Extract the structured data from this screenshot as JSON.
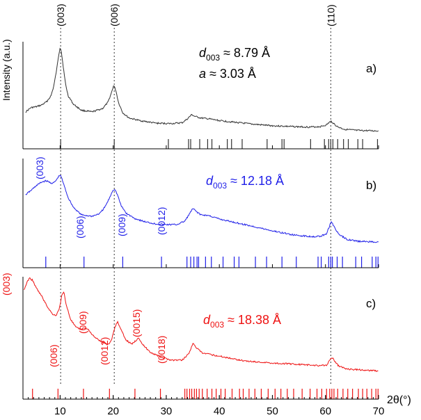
{
  "chart_data": {
    "type": "line",
    "title": "",
    "xlabel": "2θ(°)",
    "ylabel": "Intensity (a.u.)",
    "xlim": [
      3,
      70
    ],
    "x_ticks": [
      10,
      20,
      30,
      40,
      50,
      60,
      70
    ],
    "x_tick_labels": [
      "10",
      "20",
      "30",
      "40",
      "50",
      "60",
      "70"
    ],
    "grid": false,
    "legend": "none",
    "reference_lines": [
      {
        "label": "(003)",
        "x": 10.1
      },
      {
        "label": "(006)",
        "x": 20.2
      },
      {
        "label": "(110)",
        "x": 61.0
      }
    ],
    "panels": [
      {
        "id": "a",
        "panel_label": "a)",
        "color": "#303030",
        "annotation": [
          {
            "symbol": "d",
            "sub": "003",
            "rest": " ≈ 8.79 Å"
          },
          {
            "symbol": "a",
            "sub": "",
            "rest": " ≈ 3.03 Å"
          }
        ],
        "curve": {
          "x": [
            3.5,
            4.5,
            5.5,
            6.5,
            7.5,
            8.3,
            8.8,
            9.3,
            9.7,
            10.0,
            10.2,
            10.5,
            11.0,
            11.5,
            12.5,
            14.0,
            16.0,
            18.0,
            19.0,
            19.6,
            20.1,
            20.5,
            21.0,
            21.8,
            23.0,
            25.0,
            28.0,
            31.0,
            33.0,
            34.0,
            34.8,
            35.3,
            36.5,
            38.0,
            40.0,
            43.0,
            46.0,
            50.0,
            54.0,
            57.0,
            59.0,
            60.2,
            60.8,
            61.1,
            61.5,
            62.2,
            63.5,
            66.0,
            70.0
          ],
          "y": [
            0.25,
            0.3,
            0.31,
            0.33,
            0.37,
            0.44,
            0.55,
            0.72,
            0.9,
            1.0,
            0.96,
            0.82,
            0.58,
            0.44,
            0.34,
            0.27,
            0.25,
            0.29,
            0.36,
            0.46,
            0.56,
            0.5,
            0.36,
            0.24,
            0.18,
            0.15,
            0.12,
            0.115,
            0.125,
            0.17,
            0.22,
            0.2,
            0.18,
            0.17,
            0.15,
            0.13,
            0.11,
            0.09,
            0.08,
            0.075,
            0.08,
            0.1,
            0.135,
            0.14,
            0.12,
            0.08,
            0.05,
            0.035,
            0.03
          ]
        },
        "reflection_positions": [
          10.1,
          20.2,
          30.4,
          34.2,
          34.6,
          36.3,
          37.8,
          38.6,
          41.5,
          42.3,
          44.3,
          49.0,
          51.8,
          52.2,
          57.2,
          59.8,
          60.6,
          61.0,
          61.4,
          62.3,
          63.4,
          64.3,
          66.1,
          67.0,
          69.8
        ]
      },
      {
        "id": "b",
        "panel_label": "b)",
        "color": "#1f1fe8",
        "annotation": [
          {
            "symbol": "d",
            "sub": "003",
            "rest": " ≈ 12.18 Å"
          }
        ],
        "peak_labels": [
          "(003)",
          "(006)",
          "(009)",
          "(0012)"
        ],
        "curve": {
          "x": [
            3.5,
            4.5,
            5.5,
            6.5,
            7.3,
            8.0,
            8.6,
            9.2,
            9.7,
            10.0,
            10.3,
            10.8,
            11.5,
            12.5,
            14.0,
            16.0,
            17.5,
            18.5,
            19.3,
            19.9,
            20.3,
            20.8,
            21.5,
            22.5,
            24.0,
            26.0,
            28.0,
            30.0,
            32.0,
            33.5,
            34.5,
            35.0,
            35.5,
            36.5,
            38.0,
            40.0,
            43.0,
            46.0,
            50.0,
            54.0,
            57.0,
            59.0,
            60.2,
            60.8,
            61.1,
            61.6,
            62.5,
            64.0,
            66.0,
            70.0
          ],
          "y": [
            0.72,
            0.78,
            0.85,
            0.9,
            0.92,
            0.9,
            0.88,
            0.92,
            0.98,
            1.0,
            0.96,
            0.84,
            0.68,
            0.54,
            0.43,
            0.41,
            0.45,
            0.55,
            0.67,
            0.78,
            0.8,
            0.72,
            0.56,
            0.45,
            0.38,
            0.33,
            0.3,
            0.29,
            0.29,
            0.34,
            0.46,
            0.52,
            0.49,
            0.43,
            0.42,
            0.37,
            0.32,
            0.27,
            0.2,
            0.14,
            0.12,
            0.12,
            0.16,
            0.28,
            0.34,
            0.26,
            0.15,
            0.08,
            0.05,
            0.04
          ]
        },
        "reflection_positions": [
          7.3,
          14.5,
          21.8,
          29.1,
          33.9,
          34.6,
          35.2,
          35.8,
          36.1,
          37.4,
          38.5,
          40.7,
          42.8,
          43.7,
          46.8,
          48.9,
          51.8,
          54.5,
          58.6,
          59.2,
          60.6,
          61.0,
          61.3,
          62.2,
          63.2,
          65.7,
          66.8,
          68.8,
          69.5,
          69.9
        ]
      },
      {
        "id": "c",
        "panel_label": "c)",
        "color": "#ee1111",
        "annotation": [
          {
            "symbol": "d",
            "sub": "003",
            "rest": " ≈ 18.38 Å"
          }
        ],
        "peak_labels": [
          "(003)",
          "(006)",
          "(009)",
          "(0012)",
          "(0015)",
          "(0018)"
        ],
        "curve": {
          "x": [
            3.2,
            3.7,
            4.2,
            4.8,
            5.5,
            6.5,
            7.5,
            8.5,
            9.2,
            9.8,
            10.3,
            10.7,
            11.2,
            12.0,
            13.0,
            14.0,
            14.6,
            15.3,
            16.5,
            18.0,
            19.0,
            19.6,
            20.3,
            20.8,
            21.3,
            22.3,
            23.5,
            24.3,
            24.8,
            25.5,
            27.0,
            29.0,
            31.0,
            33.0,
            34.3,
            35.0,
            35.6,
            36.8,
            38.0,
            41.0,
            45.0,
            50.0,
            54.0,
            57.0,
            59.0,
            60.3,
            60.9,
            61.2,
            61.7,
            62.5,
            64.0,
            67.0,
            70.0
          ],
          "y": [
            0.88,
            0.95,
            1.0,
            0.98,
            0.9,
            0.82,
            0.72,
            0.64,
            0.62,
            0.68,
            0.82,
            0.86,
            0.72,
            0.58,
            0.5,
            0.48,
            0.5,
            0.48,
            0.4,
            0.35,
            0.33,
            0.36,
            0.5,
            0.56,
            0.5,
            0.38,
            0.33,
            0.37,
            0.4,
            0.33,
            0.25,
            0.2,
            0.17,
            0.17,
            0.24,
            0.34,
            0.3,
            0.24,
            0.23,
            0.2,
            0.16,
            0.14,
            0.13,
            0.12,
            0.115,
            0.12,
            0.18,
            0.2,
            0.16,
            0.11,
            0.08,
            0.07,
            0.06
          ]
        },
        "reflection_positions": [
          4.8,
          9.6,
          14.4,
          19.3,
          24.1,
          28.9,
          33.5,
          33.9,
          34.4,
          34.8,
          35.3,
          35.7,
          36.2,
          36.8,
          37.7,
          38.6,
          39.4,
          40.3,
          41.1,
          42.4,
          43.8,
          44.5,
          45.6,
          46.7,
          47.9,
          49.2,
          50.5,
          51.6,
          52.8,
          54.0,
          55.6,
          57.1,
          58.4,
          59.3,
          60.2,
          60.8,
          61.2,
          61.6,
          62.3,
          63.3,
          64.2,
          65.1,
          66.2,
          67.0,
          67.8,
          68.7,
          69.5,
          69.9
        ]
      }
    ]
  }
}
